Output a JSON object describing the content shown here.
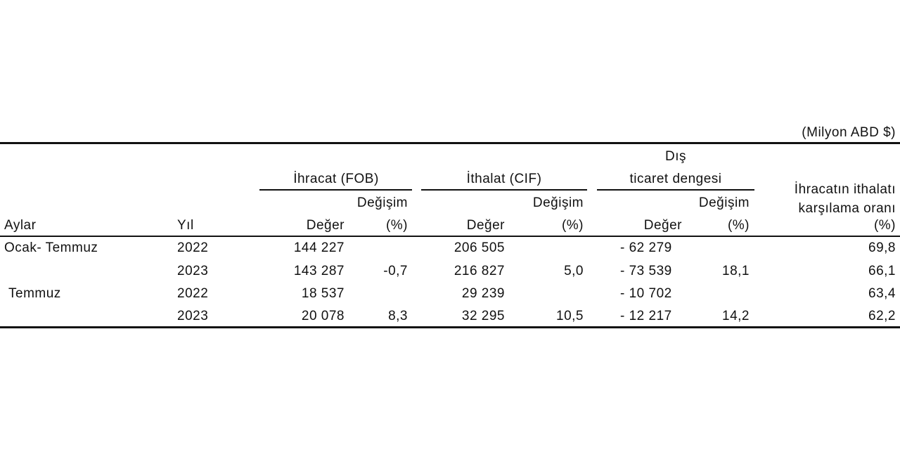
{
  "unit_note": "(Milyon ABD $)",
  "header": {
    "export_group": "İhracat (FOB)",
    "import_group": "İthalat (CIF)",
    "balance_group_line1": "Dış",
    "balance_group_line2": "ticaret dengesi",
    "coverage_line1": "İhracatın ithalatı",
    "coverage_line2": "karşılama oranı",
    "change_label": "Değişim",
    "col_months": "Aylar",
    "col_year": "Yıl",
    "value_label": "Değer",
    "percent_label": "(%)"
  },
  "rows": [
    {
      "month": "Ocak- Temmuz",
      "year": "2022",
      "export_value": "144 227",
      "export_change": "",
      "import_value": "206 505",
      "import_change": "",
      "balance_value": "- 62 279",
      "balance_change": "",
      "coverage": "69,8"
    },
    {
      "month": "",
      "year": "2023",
      "export_value": "143 287",
      "export_change": "-0,7",
      "import_value": "216 827",
      "import_change": "5,0",
      "balance_value": "- 73 539",
      "balance_change": "18,1",
      "coverage": "66,1"
    },
    {
      "month": "Temmuz",
      "year": "2022",
      "export_value": "18 537",
      "export_change": "",
      "import_value": "29 239",
      "import_change": "",
      "balance_value": "- 10 702",
      "balance_change": "",
      "coverage": "63,4"
    },
    {
      "month": "",
      "year": "2023",
      "export_value": "20 078",
      "export_change": "8,3",
      "import_value": "32 295",
      "import_change": "10,5",
      "balance_value": "- 12 217",
      "balance_change": "14,2",
      "coverage": "62,2"
    }
  ]
}
